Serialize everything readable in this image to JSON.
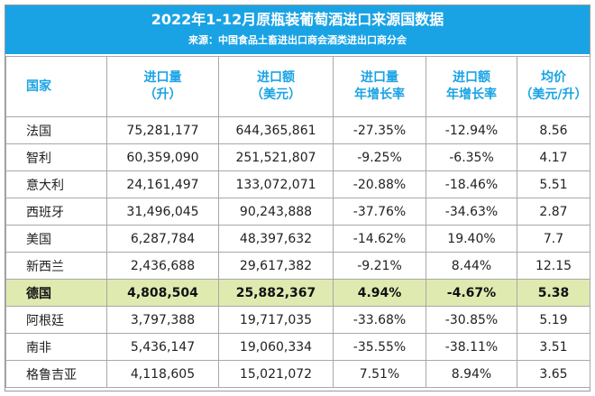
{
  "header": {
    "title": "2022年1-12月原瓶装葡萄酒进口来源国数据",
    "source": "来源：中国食品土畜进出口商会酒类进出口商分会"
  },
  "columns": [
    {
      "line1": "国家",
      "line2": ""
    },
    {
      "line1": "进口量",
      "line2": "（升）"
    },
    {
      "line1": "进口额",
      "line2": "（美元）"
    },
    {
      "line1": "进口量",
      "line2": "年增长率"
    },
    {
      "line1": "进口额",
      "line2": "年增长率"
    },
    {
      "line1": "均价",
      "line2": "（美元/升）"
    }
  ],
  "rows": [
    [
      "法国",
      "75,281,177",
      "644,365,861",
      "-27.35%",
      "-12.94%",
      "8.56"
    ],
    [
      "智利",
      "60,359,090",
      "251,521,807",
      "-9.25%",
      "-6.35%",
      "4.17"
    ],
    [
      "意大利",
      "24,161,497",
      "133,072,071",
      "-20.88%",
      "-18.46%",
      "5.51"
    ],
    [
      "西班牙",
      "31,496,045",
      "90,243,888",
      "-37.76%",
      "-34.63%",
      "2.87"
    ],
    [
      "美国",
      "6,287,784",
      "48,397,632",
      "-14.62%",
      "19.40%",
      "7.7"
    ],
    [
      "新西兰",
      "2,436,688",
      "29,617,382",
      "-9.21%",
      "8.44%",
      "12.15"
    ],
    [
      "德国",
      "4,808,504",
      "25,882,367",
      "4.94%",
      "-4.67%",
      "5.38"
    ],
    [
      "阿根廷",
      "3,797,388",
      "19,717,035",
      "-33.68%",
      "-30.85%",
      "5.19"
    ],
    [
      "南非",
      "5,436,147",
      "19,060,334",
      "-35.55%",
      "-38.11%",
      "3.51"
    ],
    [
      "格鲁吉亚",
      "4,118,605",
      "15,021,072",
      "7.51%",
      "8.94%",
      "3.65"
    ]
  ],
  "highlight": {
    "row_country": "德国",
    "color": "#dfeab1"
  },
  "colors": {
    "banner": "#1aa3e4",
    "header_text": "#1aa3e4"
  }
}
